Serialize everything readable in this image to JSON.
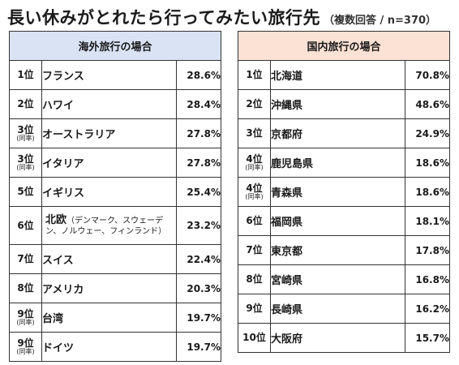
{
  "title": {
    "main": "長い休みがとれたら行ってみたい旅行先",
    "sub": "（複数回答 / n=370）"
  },
  "chart_data": [
    {
      "type": "table",
      "header": "海外旅行の場合",
      "rows": [
        {
          "rank": "1位",
          "tie": "",
          "name": "フランス",
          "note": "",
          "pct": "28.6%"
        },
        {
          "rank": "2位",
          "tie": "",
          "name": "ハワイ",
          "note": "",
          "pct": "28.4%"
        },
        {
          "rank": "3位",
          "tie": "(同率)",
          "name": "オーストラリア",
          "note": "",
          "pct": "27.8%"
        },
        {
          "rank": "3位",
          "tie": "(同率)",
          "name": "イタリア",
          "note": "",
          "pct": "27.8%"
        },
        {
          "rank": "5位",
          "tie": "",
          "name": "イギリス",
          "note": "",
          "pct": "25.4%"
        },
        {
          "rank": "6位",
          "tie": "",
          "name": "北欧",
          "note": "（デンマーク、スウェーデン、ノルウェー、フィンランド）",
          "pct": "23.2%"
        },
        {
          "rank": "7位",
          "tie": "",
          "name": "スイス",
          "note": "",
          "pct": "22.4%"
        },
        {
          "rank": "8位",
          "tie": "",
          "name": "アメリカ",
          "note": "",
          "pct": "20.3%"
        },
        {
          "rank": "9位",
          "tie": "(同率)",
          "name": "台湾",
          "note": "",
          "pct": "19.7%"
        },
        {
          "rank": "9位",
          "tie": "(同率)",
          "name": "ドイツ",
          "note": "",
          "pct": "19.7%"
        }
      ]
    },
    {
      "type": "table",
      "header": "国内旅行の場合",
      "rows": [
        {
          "rank": "1位",
          "tie": "",
          "name": "北海道",
          "note": "",
          "pct": "70.8%"
        },
        {
          "rank": "2位",
          "tie": "",
          "name": "沖縄県",
          "note": "",
          "pct": "48.6%"
        },
        {
          "rank": "3位",
          "tie": "",
          "name": "京都府",
          "note": "",
          "pct": "24.9%"
        },
        {
          "rank": "4位",
          "tie": "(同率)",
          "name": "鹿児島県",
          "note": "",
          "pct": "18.6%"
        },
        {
          "rank": "4位",
          "tie": "(同率)",
          "name": "青森県",
          "note": "",
          "pct": "18.6%"
        },
        {
          "rank": "6位",
          "tie": "",
          "name": "福岡県",
          "note": "",
          "pct": "18.1%"
        },
        {
          "rank": "7位",
          "tie": "",
          "name": "東京都",
          "note": "",
          "pct": "17.8%"
        },
        {
          "rank": "8位",
          "tie": "",
          "name": "宮崎県",
          "note": "",
          "pct": "16.8%"
        },
        {
          "rank": "9位",
          "tie": "",
          "name": "長崎県",
          "note": "",
          "pct": "16.2%"
        },
        {
          "rank": "10位",
          "tie": "",
          "name": "大阪府",
          "note": "",
          "pct": "15.7%"
        }
      ]
    }
  ]
}
